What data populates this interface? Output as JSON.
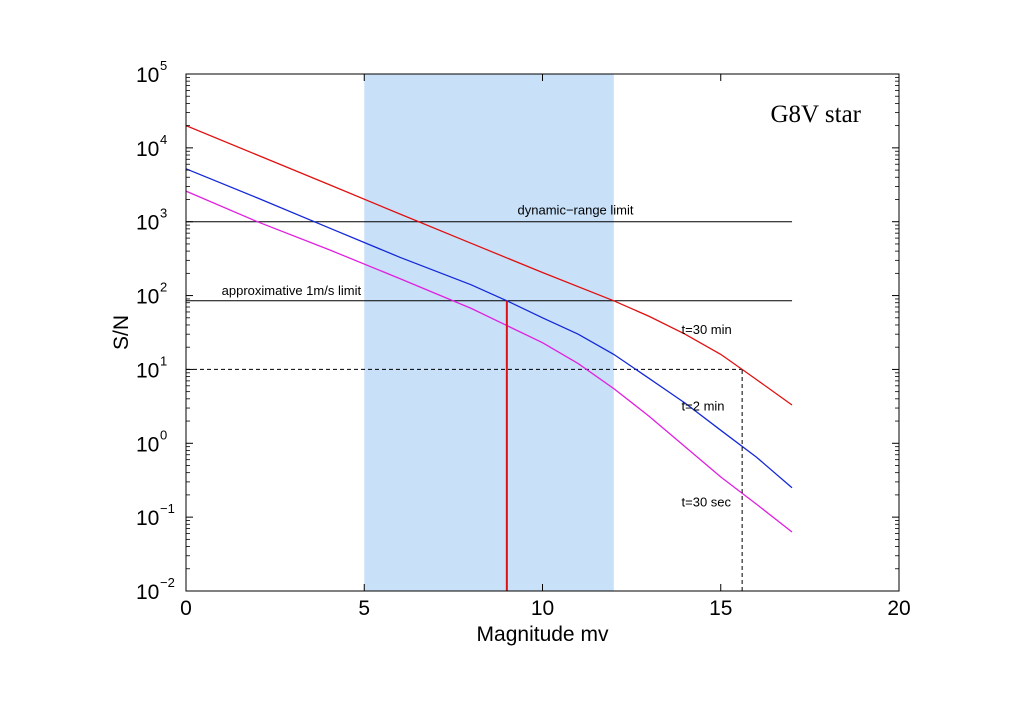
{
  "chart_data": {
    "type": "line",
    "title": "",
    "corner_label": "G8V star",
    "xlabel": "Magnitude mv",
    "ylabel": "S/N",
    "xlim": [
      0,
      20
    ],
    "ylim_log10": [
      -2,
      5
    ],
    "y_scale": "log",
    "x_ticks": [
      "0",
      "5",
      "10",
      "15",
      "20"
    ],
    "y_ticks": [
      {
        "base": "10",
        "exp": "5"
      },
      {
        "base": "10",
        "exp": "4"
      },
      {
        "base": "10",
        "exp": "3"
      },
      {
        "base": "10",
        "exp": "2"
      },
      {
        "base": "10",
        "exp": "1"
      },
      {
        "base": "10",
        "exp": "0"
      },
      {
        "base": "10",
        "exp": "−1"
      },
      {
        "base": "10",
        "exp": "−2"
      }
    ],
    "shaded_band": {
      "x0": 5,
      "x1": 12,
      "color": "#c8e1f9"
    },
    "series": [
      {
        "label": "t=30 min",
        "color": "#e01010",
        "x": [
          0,
          2,
          4,
          6,
          8,
          10,
          12,
          13,
          14,
          15,
          15.6,
          16,
          17
        ],
        "y": [
          20000,
          8000,
          3200,
          1270,
          510,
          205,
          85,
          52,
          30,
          16,
          10,
          7.3,
          3.3
        ]
      },
      {
        "label": "t=2 min",
        "color": "#1428d8",
        "x": [
          0,
          2,
          4,
          6,
          8,
          9,
          10,
          11,
          12,
          13,
          14,
          15,
          16,
          17
        ],
        "y": [
          5200,
          2100,
          830,
          330,
          140,
          85,
          50,
          30,
          16,
          7.5,
          3.5,
          1.5,
          0.65,
          0.25
        ]
      },
      {
        "label": "t=30 sec",
        "color": "#e020e0",
        "x": [
          0,
          2,
          4,
          6,
          8,
          10,
          11,
          12,
          13,
          14,
          15,
          16,
          17
        ],
        "y": [
          2600,
          1000,
          420,
          170,
          67,
          23,
          12,
          5.5,
          2.3,
          0.9,
          0.35,
          0.15,
          0.063
        ]
      }
    ],
    "reference_lines": [
      {
        "label": "dynamic−range limit",
        "y": 1000,
        "x0": 0,
        "x1": 17,
        "style": "solid",
        "color": "#000000"
      },
      {
        "label": "approximative 1m/s limit",
        "y": 85,
        "x0": 0,
        "x1": 17,
        "style": "solid",
        "color": "#000000"
      },
      {
        "label": "",
        "y": 10,
        "x0": 0,
        "x1": 15.6,
        "style": "dashed",
        "color": "#000000"
      }
    ],
    "vertical_lines": [
      {
        "x": 9,
        "y0": 0.01,
        "y1": 85,
        "style": "solid",
        "color": "#e01010"
      },
      {
        "x": 15.6,
        "y0": 0.01,
        "y1": 10,
        "style": "dashed",
        "color": "#000000"
      }
    ],
    "grid": false,
    "legend": "none"
  }
}
